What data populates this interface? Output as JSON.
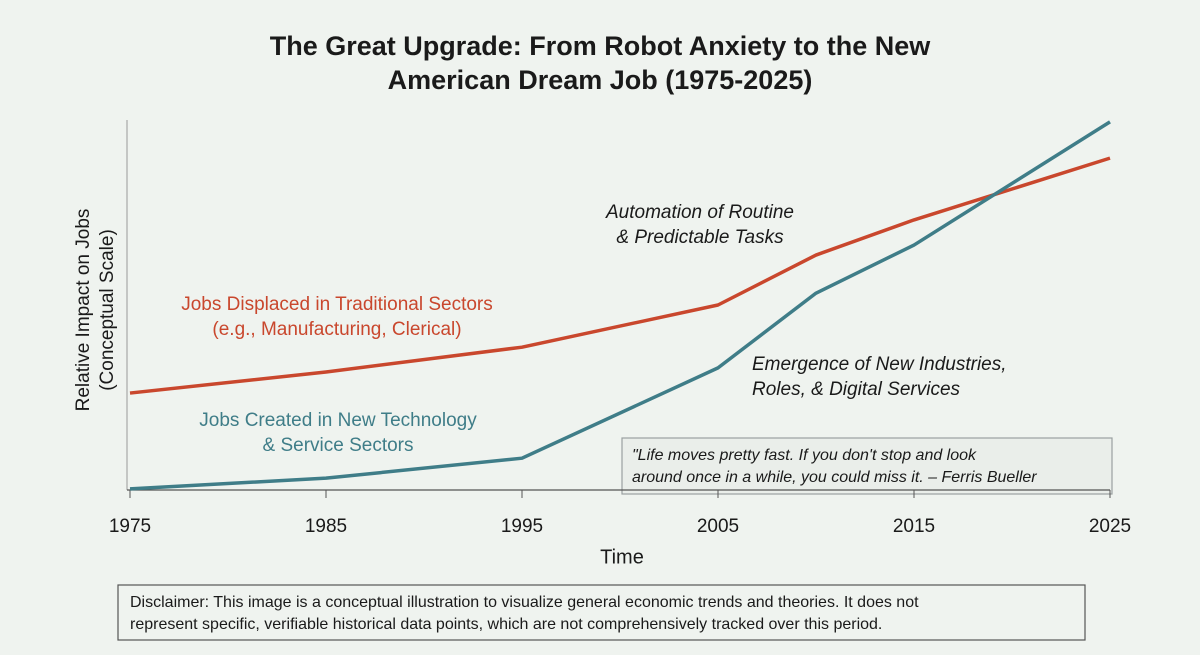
{
  "chart_data": {
    "type": "line",
    "title": [
      "The Great Upgrade: From Robot Anxiety to the New",
      "American Dream Job (1975-2025)"
    ],
    "xlabel": "Time",
    "ylabel": [
      "Relative Impact on Jobs",
      "(Conceptual Scale)"
    ],
    "x": [
      1975,
      1985,
      1995,
      2005,
      2010,
      2015,
      2025
    ],
    "xlim": [
      1975,
      2025
    ],
    "xticks": [
      1975,
      1985,
      1995,
      2005,
      2015,
      2025
    ],
    "ylim": [
      0,
      100
    ],
    "series": [
      {
        "name": [
          "Jobs Displaced in Traditional Sectors",
          "(e.g., Manufacturing, Clerical)"
        ],
        "color": "#c9472d",
        "values": [
          26.2,
          31.9,
          38.6,
          50,
          63.5,
          73,
          89.7
        ]
      },
      {
        "name": [
          "Jobs Created in New Technology",
          "& Service Sectors"
        ],
        "color": "#3f7d88",
        "values": [
          0.3,
          3.2,
          8.6,
          33,
          53.2,
          66.2,
          99.5
        ]
      }
    ],
    "annotations": [
      {
        "text": [
          "Automation of Routine",
          "& Predictable Tasks"
        ]
      },
      {
        "text": [
          "Emergence of New Industries,",
          "Roles, & Digital Services"
        ]
      }
    ],
    "quote": [
      "\"Life moves pretty fast. If you don't stop and look",
      "around once in a while, you could miss it. – Ferris Bueller"
    ],
    "disclaimer": [
      "Disclaimer: This image is a conceptual illustration to visualize general economic trends and theories. It does not",
      "represent specific, verifiable historical data points, which are not comprehensively tracked over this period."
    ]
  }
}
